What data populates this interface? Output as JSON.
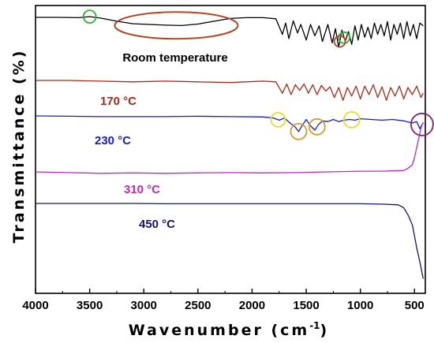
{
  "chart_data": {
    "type": "line",
    "xlabel": "Wavenumber (cm",
    "xlabel_sup": "-1",
    "xlabel_end": ")",
    "ylabel": "Transmittance (%)",
    "xlim": [
      4000,
      400
    ],
    "x_reversed": true,
    "x_ticks": [
      "4000",
      "3500",
      "3000",
      "2500",
      "2000",
      "1500",
      "1000",
      "500"
    ],
    "y_ticks_shown": false,
    "grid": false,
    "series": [
      {
        "name": "Room temperature",
        "color": "#000000",
        "x": [
          4000,
          3800,
          3600,
          3500,
          3400,
          3250,
          3100,
          2950,
          2800,
          2650,
          2500,
          2350,
          2200,
          2050,
          1900,
          1780,
          1720,
          1690,
          1660,
          1620,
          1580,
          1550,
          1500,
          1460,
          1420,
          1380,
          1350,
          1300,
          1260,
          1230,
          1200,
          1170,
          1140,
          1110,
          1080,
          1050,
          1020,
          990,
          960,
          930,
          900,
          870,
          840,
          810,
          780,
          750,
          720,
          690,
          660,
          630,
          600,
          570,
          540,
          510,
          480,
          450,
          420
        ],
        "y": [
          0.0,
          0.0,
          0.05,
          -0.1,
          0.1,
          0.55,
          0.9,
          1.0,
          1.1,
          1.15,
          0.95,
          0.55,
          0.15,
          0.05,
          0.05,
          0.2,
          2.4,
          0.8,
          3.0,
          0.5,
          2.2,
          1.0,
          3.2,
          1.0,
          2.6,
          1.2,
          3.4,
          1.0,
          3.6,
          1.6,
          4.2,
          1.8,
          3.4,
          2.0,
          3.8,
          1.2,
          3.2,
          1.0,
          2.8,
          1.4,
          3.0,
          0.8,
          2.4,
          1.0,
          2.6,
          0.6,
          3.2,
          1.0,
          2.4,
          0.8,
          3.0,
          0.6,
          2.6,
          1.0,
          3.0,
          0.8,
          1.2
        ],
        "baseline_y": 22
      },
      {
        "name": "170 °C",
        "color": "#aa2a13",
        "x": [
          4000,
          3700,
          3400,
          3100,
          2800,
          2500,
          2200,
          1900,
          1780,
          1720,
          1680,
          1640,
          1600,
          1560,
          1520,
          1480,
          1440,
          1400,
          1360,
          1320,
          1280,
          1240,
          1200,
          1160,
          1120,
          1080,
          1040,
          1000,
          960,
          920,
          880,
          840,
          800,
          760,
          720,
          680,
          640,
          600,
          560,
          520,
          480,
          440,
          420
        ],
        "y": [
          0.0,
          0.0,
          0.1,
          0.2,
          0.1,
          0.2,
          0.3,
          0.1,
          0.2,
          1.8,
          0.5,
          2.0,
          0.6,
          1.4,
          0.5,
          1.8,
          0.6,
          2.0,
          0.7,
          1.5,
          0.9,
          2.4,
          1.0,
          2.8,
          1.0,
          2.2,
          0.8,
          2.6,
          0.8,
          2.0,
          0.6,
          2.4,
          0.9,
          2.8,
          1.0,
          2.2,
          0.8,
          2.6,
          1.0,
          2.0,
          0.8,
          2.4,
          1.8
        ],
        "baseline_y": 102
      },
      {
        "name": "230 °C",
        "color": "#1a1ad6",
        "x": [
          4000,
          3700,
          3400,
          3100,
          2800,
          2500,
          2200,
          1900,
          1800,
          1750,
          1700,
          1650,
          1600,
          1570,
          1540,
          1500,
          1460,
          1420,
          1390,
          1350,
          1300,
          1250,
          1200,
          1150,
          1100,
          1050,
          1000,
          900,
          800,
          700,
          600,
          520,
          480,
          450,
          430,
          420
        ],
        "y": [
          0.0,
          0.05,
          0.1,
          0.1,
          0.1,
          0.05,
          0.1,
          0.15,
          0.3,
          0.6,
          0.3,
          1.0,
          1.6,
          2.2,
          1.4,
          0.5,
          1.4,
          2.0,
          1.3,
          0.7,
          0.8,
          0.5,
          0.8,
          0.6,
          0.5,
          0.6,
          0.4,
          0.5,
          0.6,
          0.5,
          0.7,
          1.0,
          0.8,
          1.8,
          1.2,
          1.0
        ],
        "baseline_y": 147
      },
      {
        "name": "310 °C",
        "color": "#c026c8",
        "x": [
          4000,
          3700,
          3400,
          3100,
          2800,
          2500,
          2200,
          1900,
          1600,
          1300,
          1000,
          800,
          700,
          600,
          560,
          520,
          500,
          480,
          460,
          440,
          420
        ],
        "y": [
          0.0,
          0.1,
          0.2,
          0.15,
          0.2,
          0.15,
          0.1,
          0.15,
          0.1,
          0.0,
          -0.1,
          -0.1,
          -0.15,
          -0.2,
          -0.5,
          -1.0,
          -2.0,
          -3.4,
          -4.8,
          -6.2,
          -7.0
        ],
        "baseline_y": 218
      },
      {
        "name": "450 °C",
        "color": "#141470",
        "x": [
          4000,
          3700,
          3400,
          3100,
          2800,
          2500,
          2200,
          1900,
          1600,
          1300,
          1000,
          800,
          650,
          600,
          560,
          520,
          500,
          480,
          460,
          440,
          420
        ],
        "y": [
          0.0,
          0.0,
          0.0,
          0.0,
          0.05,
          0.05,
          0.05,
          0.05,
          0.05,
          0.05,
          0.05,
          0.1,
          0.2,
          0.6,
          1.6,
          3.0,
          4.6,
          6.2,
          7.6,
          9.0,
          10.6
        ],
        "baseline_y": 258
      }
    ],
    "annotations": [
      {
        "shape": "circle",
        "color": "#2db52d",
        "x": 3500,
        "series": 0,
        "r": 8
      },
      {
        "shape": "ellipse",
        "color": "#b5451d",
        "x": 2700,
        "series": 0,
        "rx": 78,
        "ry": 17
      },
      {
        "shape": "circle",
        "color": "#2db52d",
        "x": 1150,
        "series": 0,
        "r": 7
      },
      {
        "shape": "circle",
        "color": "#b5451d",
        "x": 1190,
        "series": 0,
        "r": 7
      },
      {
        "shape": "circle",
        "color": "#e3df2a",
        "x": 1760,
        "series": 2,
        "r": 9
      },
      {
        "shape": "circle",
        "color": "#d89a2a",
        "x": 1570,
        "series": 2,
        "r": 10
      },
      {
        "shape": "circle",
        "color": "#d89a2a",
        "x": 1400,
        "series": 2,
        "r": 10
      },
      {
        "shape": "circle",
        "color": "#e3df2a",
        "x": 1080,
        "series": 2,
        "r": 10
      },
      {
        "shape": "circle",
        "color": "#8b1e72",
        "x": 430,
        "series": 2,
        "r": 14
      }
    ]
  }
}
